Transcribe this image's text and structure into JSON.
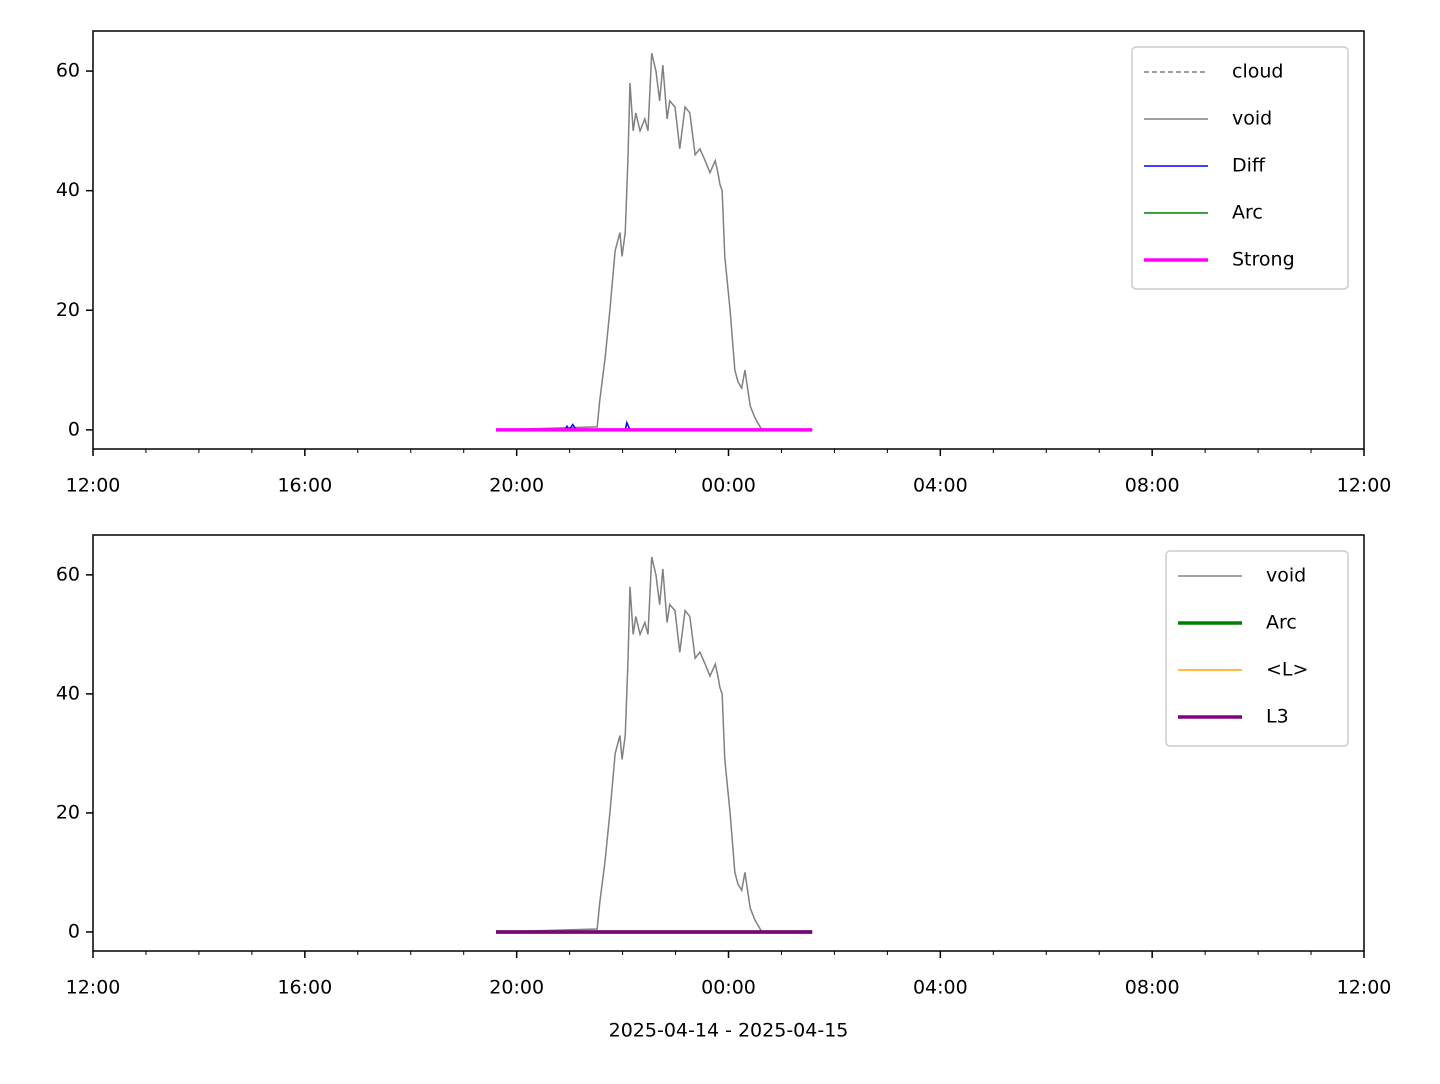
{
  "chart_data": [
    {
      "type": "line",
      "xlim": [
        12,
        36
      ],
      "ylim": [
        -3.2,
        66.7
      ],
      "xticks": [
        {
          "value": 12,
          "label": "12:00"
        },
        {
          "value": 16,
          "label": "16:00"
        },
        {
          "value": 20,
          "label": "20:00"
        },
        {
          "value": 24,
          "label": "00:00"
        },
        {
          "value": 28,
          "label": "04:00"
        },
        {
          "value": 32,
          "label": "08:00"
        },
        {
          "value": 36,
          "label": "12:00"
        }
      ],
      "xminorticks": [
        13,
        14,
        15,
        17,
        18,
        19,
        21,
        22,
        23,
        25,
        26,
        27,
        29,
        30,
        31,
        33,
        34,
        35
      ],
      "yticks": [
        0,
        20,
        40,
        60
      ],
      "legend": "upper right",
      "series": [
        {
          "name": "cloud",
          "color": "#808080",
          "dashed": true,
          "linewidth": 1.5,
          "x": [
            19.61,
            25.58
          ],
          "values": [
            0,
            0
          ]
        },
        {
          "name": "void",
          "color": "#808080",
          "linewidth": 1.5,
          "x": [
            19.61,
            21.52,
            21.57,
            21.67,
            21.76,
            21.86,
            21.95,
            21.99,
            22.05,
            22.1,
            22.14,
            22.2,
            22.25,
            22.33,
            22.42,
            22.48,
            22.55,
            22.63,
            22.7,
            22.76,
            22.84,
            22.89,
            22.99,
            23.08,
            23.18,
            23.27,
            23.37,
            23.46,
            23.56,
            23.65,
            23.75,
            23.8,
            23.84,
            23.88,
            23.93,
            24.03,
            24.12,
            24.18,
            24.25,
            24.31,
            24.41,
            24.5,
            24.63,
            25.58
          ],
          "values": [
            0,
            0.5,
            5,
            12,
            20,
            30,
            33,
            29,
            33,
            45,
            58,
            50,
            53,
            50,
            52,
            50,
            63,
            60,
            55,
            61,
            52,
            55,
            54,
            47,
            54,
            53,
            46,
            47,
            45,
            43,
            45,
            43,
            41,
            40,
            29,
            20,
            10,
            8,
            7,
            10,
            4,
            2,
            0,
            0
          ]
        },
        {
          "name": "Diff",
          "color": "#0000ff",
          "linewidth": 1.5,
          "x": [
            19.61,
            20.91,
            20.95,
            20.99,
            21.06,
            21.12,
            22.05,
            22.08,
            22.14,
            25.58
          ],
          "values": [
            0,
            0,
            0.6,
            0,
            0.9,
            0,
            0,
            1.2,
            0,
            0
          ]
        },
        {
          "name": "Arc",
          "color": "#008000",
          "linewidth": 1.5,
          "x": [
            19.61,
            25.58
          ],
          "values": [
            0,
            0
          ]
        },
        {
          "name": "Strong",
          "color": "#ff00ff",
          "linewidth": 3.5,
          "x": [
            19.61,
            25.58
          ],
          "values": [
            0,
            0
          ]
        }
      ]
    },
    {
      "type": "line",
      "xlim": [
        12,
        36
      ],
      "ylim": [
        -3.2,
        66.7
      ],
      "xticks": [
        {
          "value": 12,
          "label": "12:00"
        },
        {
          "value": 16,
          "label": "16:00"
        },
        {
          "value": 20,
          "label": "20:00"
        },
        {
          "value": 24,
          "label": "00:00"
        },
        {
          "value": 28,
          "label": "04:00"
        },
        {
          "value": 32,
          "label": "08:00"
        },
        {
          "value": 36,
          "label": "12:00"
        }
      ],
      "xminorticks": [
        13,
        14,
        15,
        17,
        18,
        19,
        21,
        22,
        23,
        25,
        26,
        27,
        29,
        30,
        31,
        33,
        34,
        35
      ],
      "yticks": [
        0,
        20,
        40,
        60
      ],
      "xlabel": "2025-04-14 - 2025-04-15",
      "legend": "upper right",
      "series": [
        {
          "name": "void",
          "color": "#808080",
          "linewidth": 1.5,
          "x": [
            19.61,
            21.52,
            21.57,
            21.67,
            21.76,
            21.86,
            21.95,
            21.99,
            22.05,
            22.1,
            22.14,
            22.2,
            22.25,
            22.33,
            22.42,
            22.48,
            22.55,
            22.63,
            22.7,
            22.76,
            22.84,
            22.89,
            22.99,
            23.08,
            23.18,
            23.27,
            23.37,
            23.46,
            23.56,
            23.65,
            23.75,
            23.8,
            23.84,
            23.88,
            23.93,
            24.03,
            24.12,
            24.18,
            24.25,
            24.31,
            24.41,
            24.5,
            24.63,
            25.58
          ],
          "values": [
            0,
            0.5,
            5,
            12,
            20,
            30,
            33,
            29,
            33,
            45,
            58,
            50,
            53,
            50,
            52,
            50,
            63,
            60,
            55,
            61,
            52,
            55,
            54,
            47,
            54,
            53,
            46,
            47,
            45,
            43,
            45,
            43,
            41,
            40,
            29,
            20,
            10,
            8,
            7,
            10,
            4,
            2,
            0,
            0
          ]
        },
        {
          "name": "Arc",
          "color": "#008000",
          "linewidth": 3.5,
          "x": [
            19.61,
            25.58
          ],
          "values": [
            0,
            0
          ]
        },
        {
          "name": "<L>",
          "color": "#ffa500",
          "linewidth": 1.5,
          "x": [
            19.61,
            25.58
          ],
          "values": [
            0,
            0
          ]
        },
        {
          "name": "L3",
          "color": "#800080",
          "linewidth": 3.5,
          "x": [
            19.61,
            25.58
          ],
          "values": [
            0,
            0
          ]
        }
      ]
    }
  ]
}
